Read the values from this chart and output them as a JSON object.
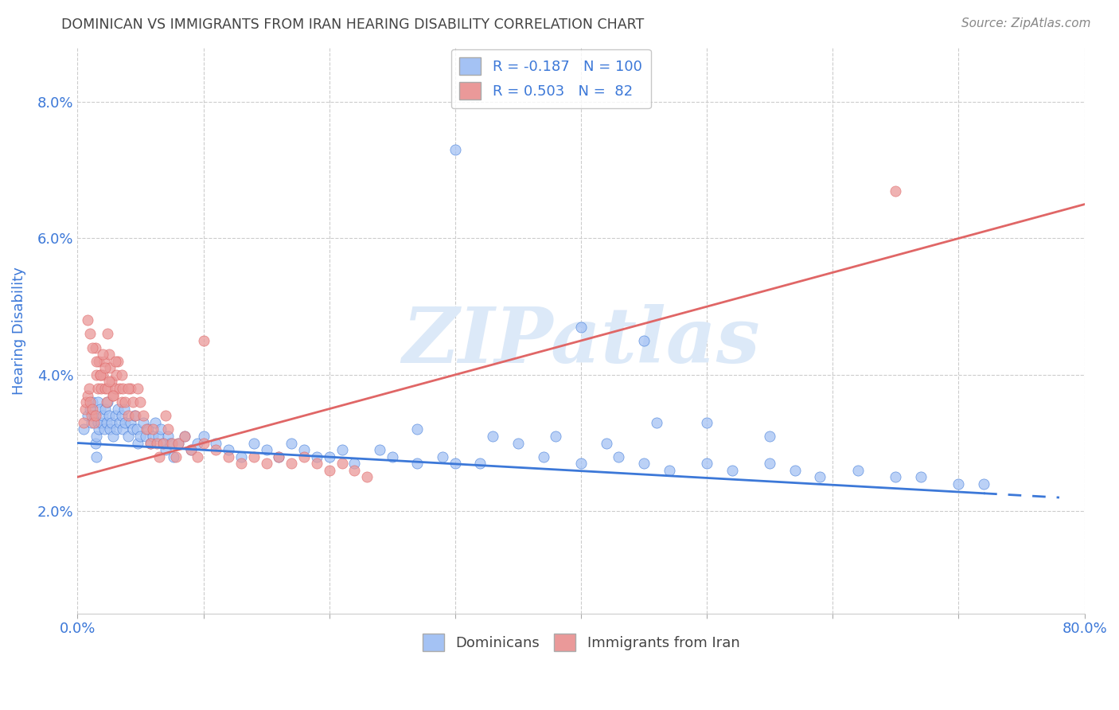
{
  "title": "DOMINICAN VS IMMIGRANTS FROM IRAN HEARING DISABILITY CORRELATION CHART",
  "source": "Source: ZipAtlas.com",
  "ylabel": "Hearing Disability",
  "xlim": [
    0,
    0.8
  ],
  "ylim": [
    0.005,
    0.088
  ],
  "ytick_vals": [
    0.02,
    0.04,
    0.06,
    0.08
  ],
  "ytick_labels": [
    "2.0%",
    "4.0%",
    "6.0%",
    "8.0%"
  ],
  "xtick_vals": [
    0.0,
    0.1,
    0.2,
    0.3,
    0.4,
    0.5,
    0.6,
    0.7,
    0.8
  ],
  "xtick_labels": [
    "0.0%",
    "",
    "",
    "",
    "",
    "",
    "",
    "",
    "80.0%"
  ],
  "blue_R": -0.187,
  "blue_N": 100,
  "pink_R": 0.503,
  "pink_N": 82,
  "blue_color": "#a4c2f4",
  "pink_color": "#ea9999",
  "blue_line_color": "#3c78d8",
  "pink_line_color": "#e06666",
  "title_color": "#434343",
  "axis_color": "#3c78d8",
  "bg_color": "#ffffff",
  "watermark_text": "ZIPatlas",
  "watermark_color": "#dce9f8",
  "legend_label_blue": "Dominicans",
  "legend_label_pink": "Immigrants from Iran",
  "blue_line_x0": 0.0,
  "blue_line_y0": 0.03,
  "blue_line_x1": 0.78,
  "blue_line_y1": 0.022,
  "blue_line_solid_end": 0.72,
  "pink_line_x0": 0.0,
  "pink_line_y0": 0.025,
  "pink_line_x1": 0.8,
  "pink_line_y1": 0.065,
  "blue_scatter_x": [
    0.005,
    0.008,
    0.01,
    0.011,
    0.012,
    0.013,
    0.014,
    0.015,
    0.015,
    0.016,
    0.016,
    0.017,
    0.018,
    0.019,
    0.02,
    0.021,
    0.022,
    0.023,
    0.024,
    0.025,
    0.026,
    0.027,
    0.028,
    0.03,
    0.031,
    0.032,
    0.033,
    0.035,
    0.036,
    0.037,
    0.038,
    0.04,
    0.042,
    0.044,
    0.045,
    0.047,
    0.048,
    0.05,
    0.052,
    0.054,
    0.056,
    0.058,
    0.06,
    0.062,
    0.064,
    0.066,
    0.068,
    0.07,
    0.072,
    0.074,
    0.076,
    0.08,
    0.085,
    0.09,
    0.095,
    0.1,
    0.11,
    0.12,
    0.13,
    0.14,
    0.15,
    0.16,
    0.17,
    0.18,
    0.19,
    0.2,
    0.21,
    0.22,
    0.24,
    0.25,
    0.27,
    0.29,
    0.3,
    0.32,
    0.35,
    0.37,
    0.4,
    0.43,
    0.45,
    0.47,
    0.5,
    0.52,
    0.55,
    0.57,
    0.59,
    0.62,
    0.65,
    0.67,
    0.7,
    0.72,
    0.3,
    0.4,
    0.45,
    0.46,
    0.27,
    0.33,
    0.38,
    0.42,
    0.5,
    0.55
  ],
  "blue_scatter_y": [
    0.032,
    0.034,
    0.035,
    0.033,
    0.036,
    0.034,
    0.03,
    0.031,
    0.028,
    0.033,
    0.036,
    0.032,
    0.035,
    0.033,
    0.034,
    0.032,
    0.035,
    0.033,
    0.036,
    0.034,
    0.032,
    0.033,
    0.031,
    0.034,
    0.032,
    0.035,
    0.033,
    0.034,
    0.032,
    0.035,
    0.033,
    0.031,
    0.033,
    0.032,
    0.034,
    0.032,
    0.03,
    0.031,
    0.033,
    0.031,
    0.032,
    0.03,
    0.031,
    0.033,
    0.031,
    0.032,
    0.03,
    0.029,
    0.031,
    0.03,
    0.028,
    0.03,
    0.031,
    0.029,
    0.03,
    0.031,
    0.03,
    0.029,
    0.028,
    0.03,
    0.029,
    0.028,
    0.03,
    0.029,
    0.028,
    0.028,
    0.029,
    0.027,
    0.029,
    0.028,
    0.027,
    0.028,
    0.027,
    0.027,
    0.03,
    0.028,
    0.027,
    0.028,
    0.027,
    0.026,
    0.027,
    0.026,
    0.027,
    0.026,
    0.025,
    0.026,
    0.025,
    0.025,
    0.024,
    0.024,
    0.073,
    0.047,
    0.045,
    0.033,
    0.032,
    0.031,
    0.031,
    0.03,
    0.033,
    0.031
  ],
  "pink_scatter_x": [
    0.005,
    0.006,
    0.007,
    0.008,
    0.009,
    0.01,
    0.011,
    0.012,
    0.013,
    0.014,
    0.015,
    0.016,
    0.017,
    0.018,
    0.019,
    0.02,
    0.021,
    0.022,
    0.023,
    0.024,
    0.025,
    0.026,
    0.027,
    0.028,
    0.03,
    0.031,
    0.032,
    0.033,
    0.035,
    0.036,
    0.038,
    0.04,
    0.042,
    0.044,
    0.046,
    0.048,
    0.05,
    0.052,
    0.055,
    0.058,
    0.06,
    0.063,
    0.065,
    0.068,
    0.07,
    0.072,
    0.075,
    0.078,
    0.08,
    0.085,
    0.09,
    0.095,
    0.1,
    0.11,
    0.12,
    0.13,
    0.14,
    0.15,
    0.16,
    0.17,
    0.18,
    0.19,
    0.2,
    0.21,
    0.22,
    0.23,
    0.024,
    0.014,
    0.008,
    0.01,
    0.012,
    0.015,
    0.018,
    0.02,
    0.022,
    0.025,
    0.028,
    0.03,
    0.035,
    0.04,
    0.65,
    0.1
  ],
  "pink_scatter_y": [
    0.033,
    0.035,
    0.036,
    0.037,
    0.038,
    0.036,
    0.034,
    0.035,
    0.033,
    0.034,
    0.04,
    0.038,
    0.042,
    0.04,
    0.038,
    0.04,
    0.042,
    0.038,
    0.036,
    0.038,
    0.043,
    0.041,
    0.039,
    0.037,
    0.038,
    0.04,
    0.042,
    0.038,
    0.036,
    0.038,
    0.036,
    0.034,
    0.038,
    0.036,
    0.034,
    0.038,
    0.036,
    0.034,
    0.032,
    0.03,
    0.032,
    0.03,
    0.028,
    0.03,
    0.034,
    0.032,
    0.03,
    0.028,
    0.03,
    0.031,
    0.029,
    0.028,
    0.03,
    0.029,
    0.028,
    0.027,
    0.028,
    0.027,
    0.028,
    0.027,
    0.028,
    0.027,
    0.026,
    0.027,
    0.026,
    0.025,
    0.046,
    0.044,
    0.048,
    0.046,
    0.044,
    0.042,
    0.04,
    0.043,
    0.041,
    0.039,
    0.037,
    0.042,
    0.04,
    0.038,
    0.067,
    0.045
  ]
}
